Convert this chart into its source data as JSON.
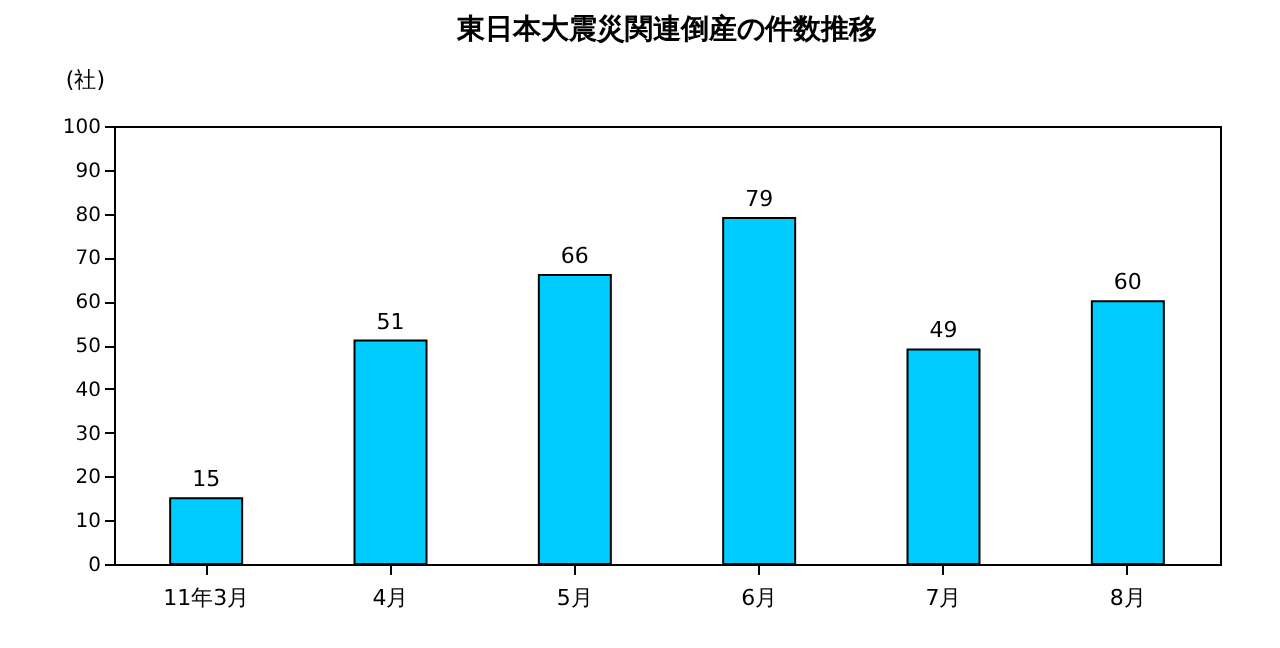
{
  "chart_data": {
    "type": "bar",
    "title": "東日本大震災関連倒産の件数推移",
    "ylabel": "(社)",
    "categories": [
      "11年3月",
      "4月",
      "5月",
      "6月",
      "7月",
      "8月"
    ],
    "values": [
      15,
      51,
      66,
      79,
      49,
      60
    ],
    "color": "#00ccff",
    "ylim": [
      0,
      100
    ],
    "yticks": [
      0,
      10,
      20,
      30,
      40,
      50,
      60,
      70,
      80,
      90,
      100
    ],
    "grid": false,
    "data_labels": true
  }
}
